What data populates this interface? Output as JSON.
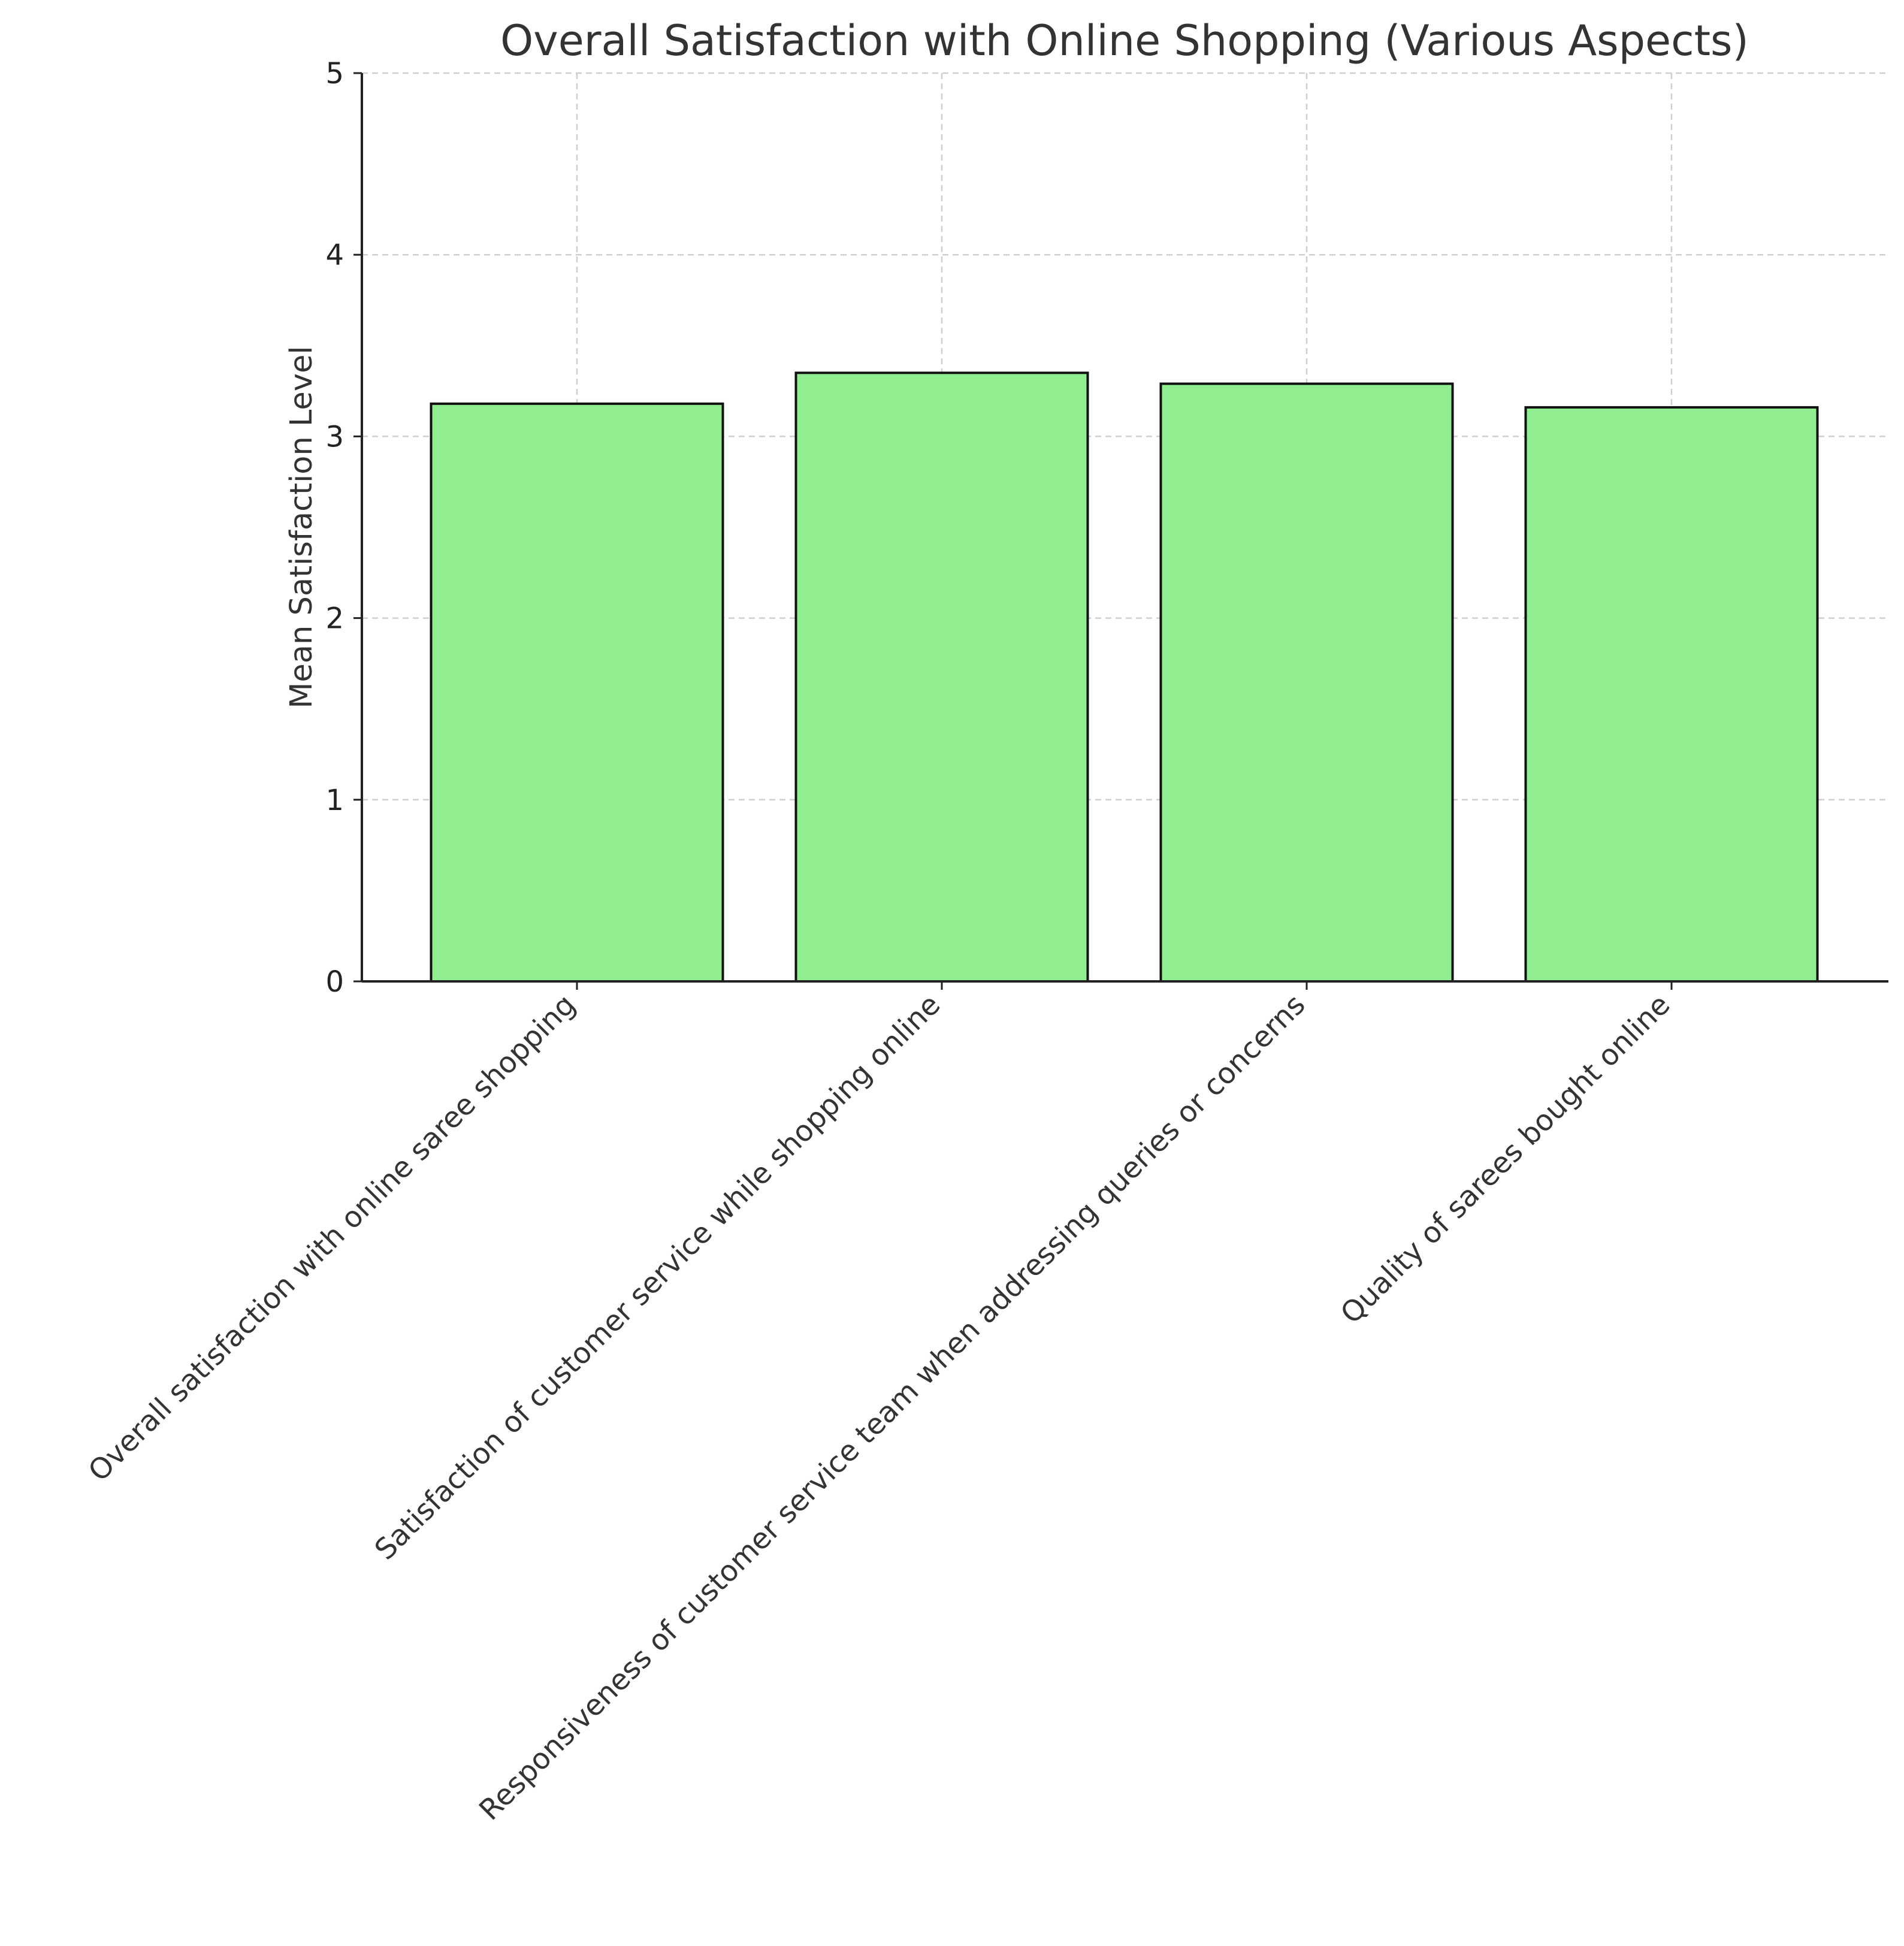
{
  "chart_data": {
    "type": "bar",
    "title": "Overall Satisfaction with Online Shopping (Various Aspects)",
    "xlabel": "",
    "ylabel": "Mean Satisfaction Level",
    "categories": [
      "Overall satisfaction with online saree shopping",
      "Satisfaction of customer service while shopping online",
      "Responsiveness of customer service team when addressing queries or concerns",
      "Quality of sarees bought online"
    ],
    "values": [
      3.18,
      3.35,
      3.29,
      3.16
    ],
    "ylim": [
      0,
      5
    ],
    "yticks": [
      "0",
      "1",
      "2",
      "3",
      "4",
      "5"
    ],
    "grid": true,
    "legend": "none",
    "colors": {
      "bar_fill": "#90ee90",
      "bar_edge": "#111111",
      "grid": "#cfcfcf",
      "axis": "#222222"
    }
  }
}
